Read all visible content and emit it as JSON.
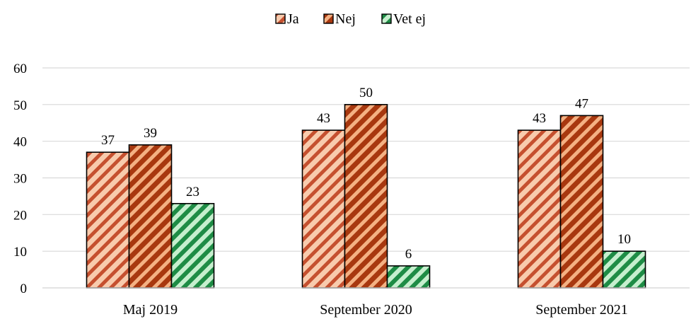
{
  "chart_data": {
    "type": "bar",
    "categories": [
      "Maj 2019",
      "September 2020",
      "September 2021"
    ],
    "series": [
      {
        "name": "Ja",
        "values": [
          37,
          43,
          43
        ],
        "color": "#f4b183",
        "stripe": "#c0452a"
      },
      {
        "name": "Nej",
        "values": [
          39,
          50,
          47
        ],
        "color": "#f4b183",
        "stripe": "#b23a12"
      },
      {
        "name": "Vet ej",
        "values": [
          23,
          6,
          10
        ],
        "color": "#c6efce",
        "stripe": "#1e8c45"
      }
    ],
    "ylim": [
      0,
      60
    ],
    "yticks": [
      0,
      10,
      20,
      30,
      40,
      50,
      60
    ],
    "grid": true,
    "legend_position": "top-center"
  }
}
